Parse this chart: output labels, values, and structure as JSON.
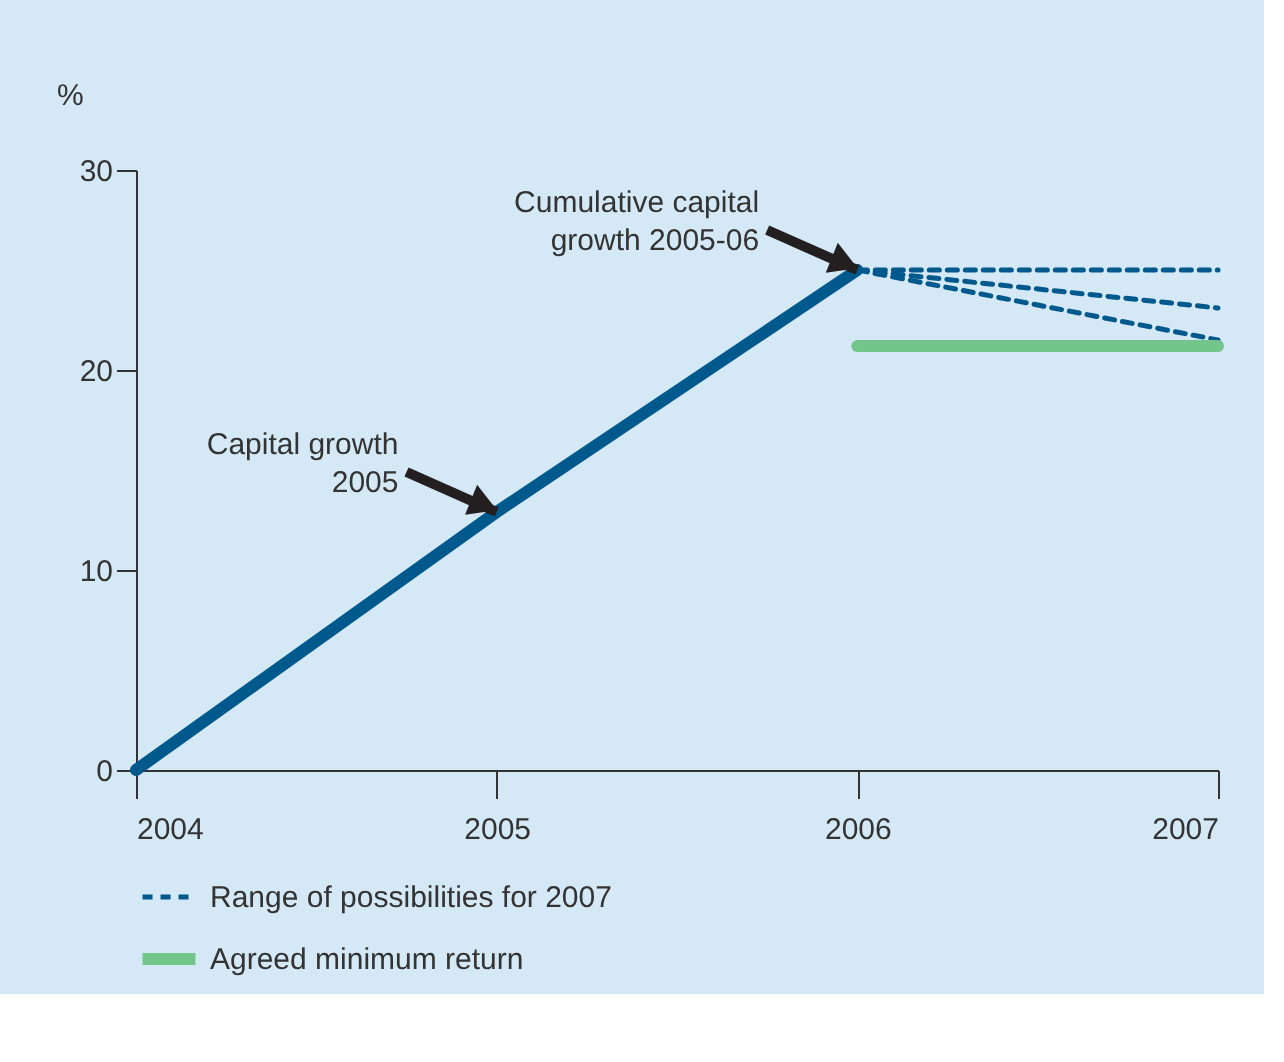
{
  "chart_data": {
    "type": "line",
    "ylabel": "%",
    "xlim": [
      2004,
      2007
    ],
    "xticks": [
      2004,
      2005,
      2006,
      2007
    ],
    "ylim": [
      0,
      30
    ],
    "yticks": [
      0,
      10,
      20,
      30
    ],
    "grid": false,
    "legend": "bottom",
    "marker": "none",
    "series": [
      {
        "color": "#00598c",
        "line_style": "solid",
        "x": [
          2004,
          2005,
          2006
        ],
        "values": [
          0,
          12.9,
          25
        ]
      },
      {
        "color": "#00598c",
        "line_style": "dashed",
        "x": [
          2006,
          2007
        ],
        "values": [
          25,
          25
        ],
        "name": "Range of possibilities for 2007"
      },
      {
        "color": "#00598c",
        "line_style": "dashed",
        "x": [
          2006,
          2007
        ],
        "values": [
          25,
          23.1
        ]
      },
      {
        "color": "#00598c",
        "line_style": "dashed",
        "x": [
          2006,
          2007
        ],
        "values": [
          25,
          21.5
        ]
      },
      {
        "color": "#74c58c",
        "line_style": "solid",
        "x": [
          2006,
          2007
        ],
        "values": [
          21.2,
          21.2
        ],
        "name": "Agreed minimum return"
      }
    ],
    "annotations": [
      {
        "text": "Cumulative capital growth 2005-06",
        "x": 2006,
        "y": 25
      },
      {
        "text": "Capital growth 2005",
        "x": 2005,
        "y": 12.9
      }
    ]
  }
}
